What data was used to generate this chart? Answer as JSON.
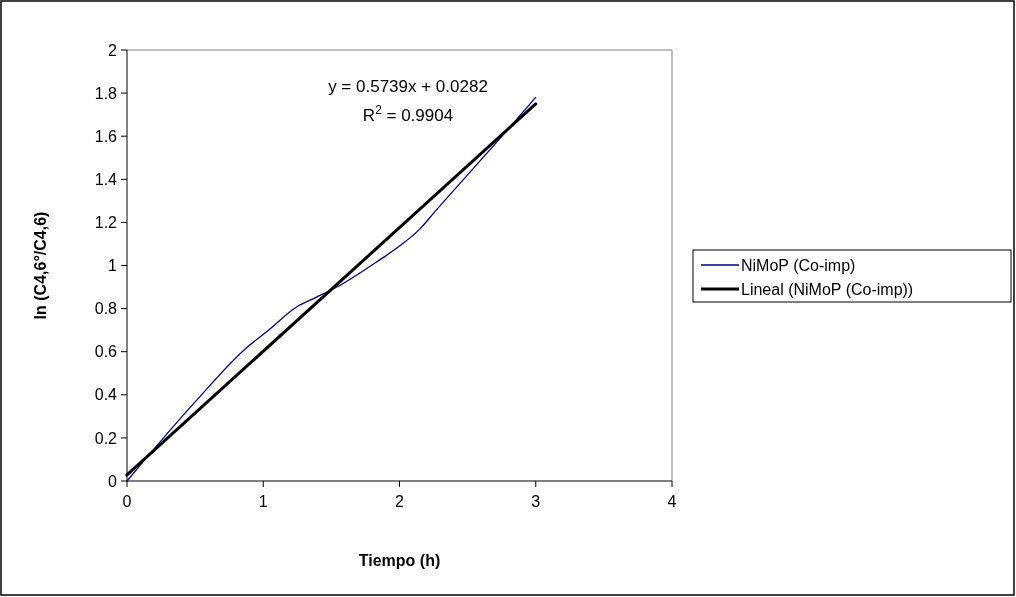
{
  "chart_data": {
    "type": "line",
    "xlabel": "Tiempo (h)",
    "ylabel": "ln (C4,6°/C4,6)",
    "xlim": [
      0,
      4
    ],
    "xticks": [
      0,
      1,
      2,
      3,
      4
    ],
    "ylim": [
      0,
      2
    ],
    "yticks": [
      0,
      0.2,
      0.4,
      0.6,
      0.8,
      1,
      1.2,
      1.4,
      1.6,
      1.8,
      2
    ],
    "grid": false,
    "legend": "right",
    "marker": "none",
    "annotations": [
      "y = 0.5739x + 0.0282",
      "R$^{2}$ = 0.9904"
    ],
    "series": [
      {
        "name": "NiMoP (Co-imp)",
        "color": "#000080",
        "x": [
          0,
          0.49,
          0.88,
          1.02,
          1.25,
          1.38,
          1.54,
          1.84,
          2,
          2.15,
          2.26,
          2.71,
          3
        ],
        "values": [
          0,
          0.36,
          0.62,
          0.69,
          0.81,
          0.85,
          0.9,
          1.02,
          1.09,
          1.17,
          1.25,
          1.57,
          1.78
        ]
      },
      {
        "name": "Lineal (NiMoP (Co-imp))",
        "color": "#000000",
        "type": "line",
        "x": [
          0,
          3
        ],
        "values": [
          0.0282,
          1.7499
        ]
      }
    ]
  }
}
